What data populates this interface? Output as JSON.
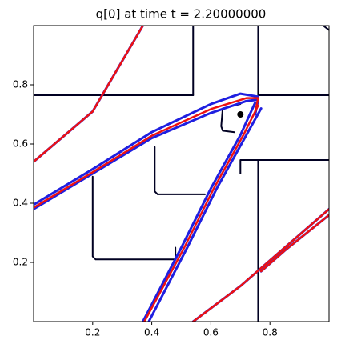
{
  "chart_data": {
    "type": "contour",
    "title": "q[0] at time t =     2.20000000",
    "xlim": [
      0,
      1
    ],
    "ylim": [
      0,
      1
    ],
    "xticks": [
      0.2,
      0.4,
      0.6,
      0.8
    ],
    "yticks": [
      0.2,
      0.4,
      0.6,
      0.8
    ],
    "series": [
      {
        "color": "#000022",
        "x": [
          0,
          0.54
        ],
        "y": [
          0.765,
          0.765
        ]
      },
      {
        "color": "#000022",
        "x": [
          0.54,
          0.54
        ],
        "y": [
          1.0,
          0.765
        ]
      },
      {
        "color": "#000022",
        "x": [
          0.76,
          1.0
        ],
        "y": [
          0.765,
          0.765
        ]
      },
      {
        "color": "#000022",
        "x": [
          0.76,
          0.76
        ],
        "y": [
          1.0,
          0.765
        ]
      },
      {
        "color": "#000022",
        "x": [
          0.76,
          0.76
        ],
        "y": [
          0.546,
          0
        ]
      },
      {
        "color": "#000022",
        "x": [
          0.7,
          0.7,
          1.0
        ],
        "y": [
          0.5,
          0.546,
          0.546
        ]
      },
      {
        "color": "#000022",
        "x": [
          0.2,
          0.2,
          0.21,
          0.48,
          0.48
        ],
        "y": [
          0.49,
          0.22,
          0.21,
          0.21,
          0.25
        ]
      },
      {
        "color": "#000022",
        "x": [
          0.41,
          0.41,
          0.42,
          0.58
        ],
        "y": [
          0.59,
          0.44,
          0.43,
          0.43
        ]
      },
      {
        "color": "#000022",
        "x": [
          0.68,
          0.64,
          0.635,
          0.64,
          0.7
        ],
        "y": [
          0.64,
          0.645,
          0.66,
          0.72,
          0.735
        ]
      },
      {
        "color": "#000022",
        "x": [
          0.98,
          1.0
        ],
        "y": [
          1.0,
          0.985
        ]
      },
      {
        "color": "#1f1fe0",
        "x": [
          0,
          0.2,
          0.4,
          0.6,
          0.72,
          0.76,
          0.75
        ],
        "y": [
          0.38,
          0.5,
          0.62,
          0.705,
          0.745,
          0.75,
          0.7
        ]
      },
      {
        "color": "#1f1fe0",
        "x": [
          0,
          0.2,
          0.4,
          0.6,
          0.7,
          0.76
        ],
        "y": [
          0.395,
          0.515,
          0.64,
          0.735,
          0.77,
          0.76
        ]
      },
      {
        "color": "#1f1fe0",
        "x": [
          0.37,
          0.5,
          0.6,
          0.7,
          0.75
        ],
        "y": [
          0,
          0.25,
          0.45,
          0.63,
          0.74
        ]
      },
      {
        "color": "#1f1fe0",
        "x": [
          0.39,
          0.52,
          0.62,
          0.72,
          0.77
        ],
        "y": [
          0,
          0.25,
          0.45,
          0.63,
          0.72
        ]
      },
      {
        "color": "#1f1fe0",
        "x": [
          0,
          0.2,
          0.37
        ],
        "y": [
          0.54,
          0.71,
          1.0
        ]
      },
      {
        "color": "#1f1fe0",
        "x": [
          0.54,
          0.7,
          1.0
        ],
        "y": [
          0,
          0.12,
          0.38
        ]
      },
      {
        "color": "#1f1fe0",
        "x": [
          0.77,
          0.85,
          1.0
        ],
        "y": [
          0.17,
          0.24,
          0.36
        ]
      },
      {
        "color": "#ee1111",
        "x": [
          0,
          0.2,
          0.4,
          0.6,
          0.72,
          0.76,
          0.75
        ],
        "y": [
          0.385,
          0.505,
          0.628,
          0.718,
          0.755,
          0.755,
          0.71
        ]
      },
      {
        "color": "#ee1111",
        "x": [
          0.375,
          0.51,
          0.61,
          0.71,
          0.76
        ],
        "y": [
          0,
          0.25,
          0.45,
          0.63,
          0.73
        ]
      },
      {
        "color": "#ee1111",
        "x": [
          0,
          0.2,
          0.37
        ],
        "y": [
          0.54,
          0.71,
          1.0
        ]
      },
      {
        "color": "#ee1111",
        "x": [
          0.54,
          0.7,
          1.0
        ],
        "y": [
          0,
          0.12,
          0.38
        ]
      },
      {
        "color": "#ee1111",
        "x": [
          0.77,
          0.85,
          1.0
        ],
        "y": [
          0.17,
          0.24,
          0.36
        ]
      }
    ],
    "points": {
      "color": "#000000",
      "x": [
        0.7
      ],
      "y": [
        0.7
      ]
    }
  }
}
